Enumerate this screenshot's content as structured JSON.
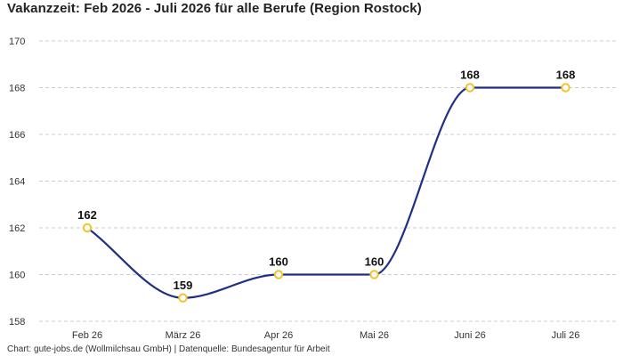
{
  "chart_data": {
    "type": "line",
    "title": "Vakanzzeit: Feb 2026 - Juli 2026 für alle Berufe (Region Rostock)",
    "footer": "Chart: gute-jobs.de (Wollmilchsau GmbH) | Datenquelle: Bundesagentur für Arbeit",
    "categories": [
      "Feb 26",
      "März 26",
      "Apr 26",
      "Mai 26",
      "Juni 26",
      "Juli 26"
    ],
    "series": [
      {
        "values": [
          162,
          159,
          160,
          160,
          168,
          168
        ]
      }
    ],
    "data_labels": [
      "162",
      "159",
      "160",
      "160",
      "168",
      "168"
    ],
    "ylim": [
      158,
      170
    ],
    "yticks": [
      158,
      160,
      162,
      164,
      166,
      168,
      170
    ],
    "ytick_labels": [
      "158",
      "160",
      "162",
      "164",
      "166",
      "168",
      "170"
    ],
    "xlabel": "",
    "ylabel": "",
    "grid": true,
    "smooth": true,
    "colors": {
      "line": "#1f2f86",
      "marker_stroke": "#f2c22c",
      "marker_fill": "#ffffff",
      "grid": "#cccccc"
    }
  }
}
